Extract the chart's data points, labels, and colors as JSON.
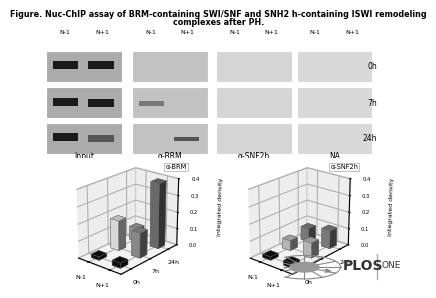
{
  "title_line1": "Figure. Nuc-ChIP assay of BRM-containing SWI/SNF and SNH2 h-containing ISWI remodeling",
  "title_line2": "complexes after PH.",
  "title_fontsize": 5.8,
  "gel_section_labels": [
    "Input",
    "α-BRM",
    "α-SNF2h",
    "NA"
  ],
  "time_labels": [
    "0h",
    "7h",
    "24h"
  ],
  "bar_chart1_title": "α-BRM",
  "bar_chart2_title": "α-SNF2h",
  "ylabel": "Integrated density",
  "x_labels": [
    "N-1",
    "N+1"
  ],
  "z_labels": [
    "0h",
    "7h",
    "24h"
  ],
  "brm_data": {
    "0h": [
      0.02,
      0.03
    ],
    "7h": [
      0.18,
      0.15
    ],
    "24h": [
      0.08,
      0.39
    ]
  },
  "snf2h_data": {
    "0h": [
      0.02,
      0.03
    ],
    "7h": [
      0.06,
      0.09
    ],
    "24h": [
      0.08,
      0.11
    ]
  },
  "bar_colors_brm": {
    "0h_N-1": "#111111",
    "0h_N+1": "#111111",
    "7h_N-1": "#f5f5f5",
    "7h_N+1": "#999999",
    "24h_N-1": "#aaaaaa",
    "24h_N+1": "#777777"
  },
  "bar_colors_snf2h": {
    "0h_N-1": "#111111",
    "0h_N+1": "#111111",
    "7h_N-1": "#cccccc",
    "7h_N+1": "#cccccc",
    "24h_N-1": "#888888",
    "24h_N+1": "#888888"
  },
  "bg_color": "#ffffff",
  "gel_bg_input": "#ababab",
  "gel_bg_brm": "#c2c2c2",
  "gel_bg_snf2h": "#d5d5d5",
  "gel_bg_na": "#d8d8d8",
  "gel_band_dark": "#1a1a1a",
  "gel_band_mid": "#555555",
  "plos_text_color": "#333333"
}
